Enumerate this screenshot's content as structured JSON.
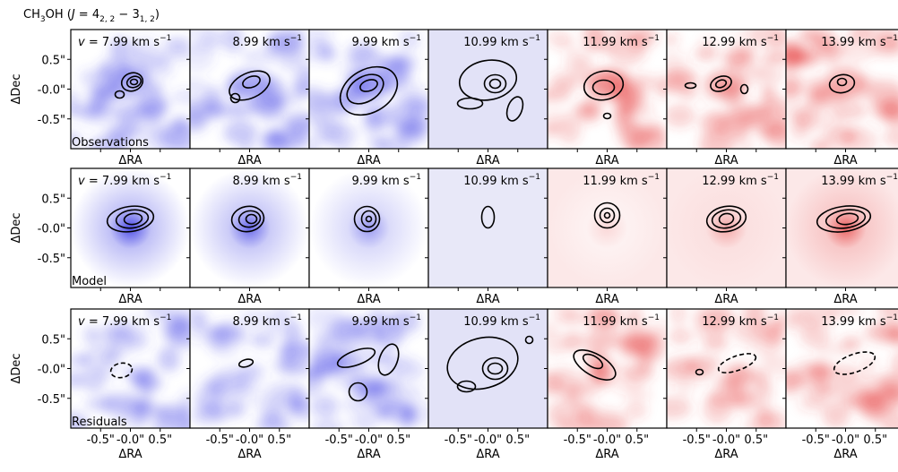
{
  "title": {
    "parts": [
      "CH",
      "3",
      "OH (",
      "J",
      " = 4",
      "2, 2",
      " − 3",
      "1, 2",
      ")"
    ]
  },
  "velocity_symbol": "v",
  "velocity_equals": " = ",
  "unit": "km s",
  "unit_exponent": "−1",
  "channels": [
    "7.99",
    "8.99",
    "9.99",
    "10.99",
    "11.99",
    "12.99",
    "13.99"
  ],
  "rows": [
    "Observations",
    "Model",
    "Residuals"
  ],
  "x_label": "ΔRA",
  "y_label": "ΔDec",
  "xlim": [
    -1,
    1
  ],
  "ylim": [
    -1,
    1
  ],
  "xticks": [
    {
      "value": -0.5,
      "label": "-0.5\""
    },
    {
      "value": 0,
      "label": "-0.0\""
    },
    {
      "value": 0.5,
      "label": "0.5\""
    }
  ],
  "yticks": [
    {
      "value": 0.5,
      "label": "0.5\""
    },
    {
      "value": 0,
      "label": "-0.0\""
    },
    {
      "value": -0.5,
      "label": "-0.5\""
    }
  ]
}
